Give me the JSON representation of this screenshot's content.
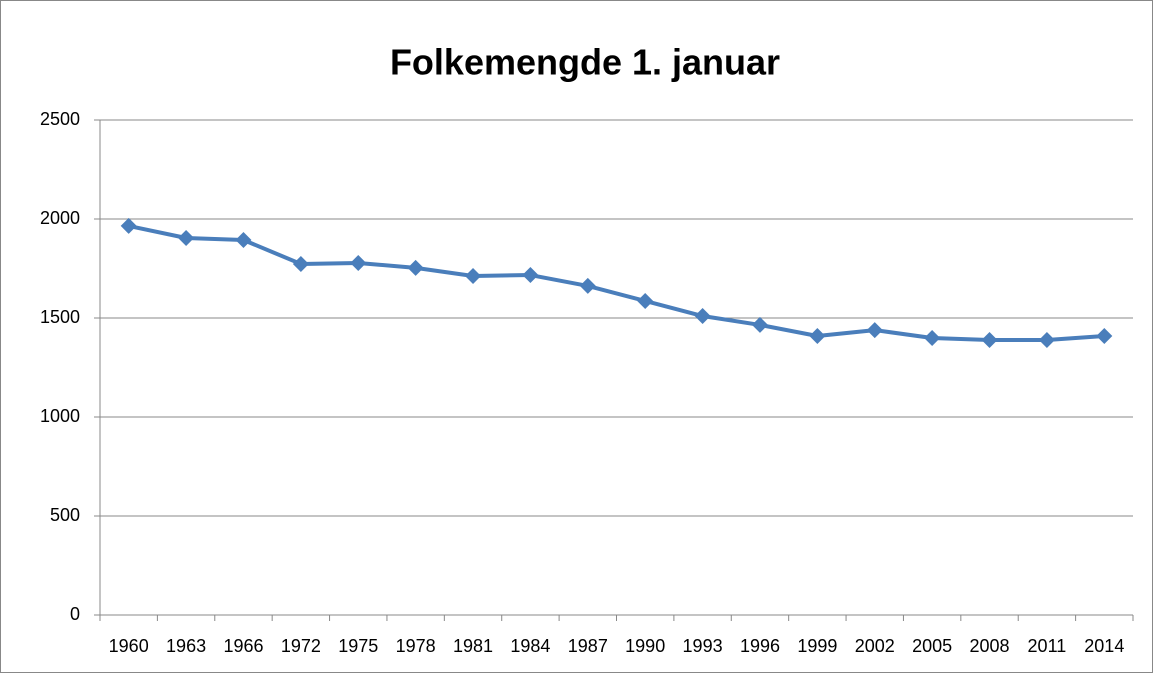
{
  "chart_data": {
    "type": "line",
    "title": "Folkemengde 1. januar",
    "categories": [
      "1960",
      "1963",
      "1966",
      "1972",
      "1975",
      "1978",
      "1981",
      "1984",
      "1987",
      "1990",
      "1993",
      "1996",
      "1999",
      "2002",
      "2005",
      "2008",
      "2011",
      "2014"
    ],
    "values": [
      1965,
      1904,
      1894,
      1773,
      1778,
      1753,
      1712,
      1717,
      1662,
      1586,
      1510,
      1465,
      1409,
      1439,
      1399,
      1389,
      1389,
      1409
    ],
    "color": "#4a7ebb",
    "ylim": [
      0,
      2500
    ],
    "yticks": [
      0,
      500,
      1000,
      1500,
      2000,
      2500
    ],
    "grid": true
  }
}
